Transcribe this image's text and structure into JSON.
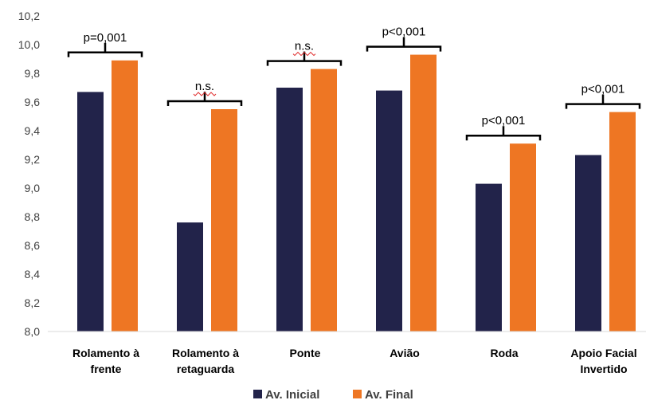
{
  "chart_data": {
    "type": "bar",
    "categories": [
      [
        "Rolamento à",
        "frente"
      ],
      [
        "Rolamento à",
        "retaguarda"
      ],
      [
        "Ponte"
      ],
      [
        "Avião"
      ],
      [
        "Roda"
      ],
      [
        "Apoio Facial",
        "Invertido"
      ]
    ],
    "series": [
      {
        "name": "Av. Inicial",
        "color": "#22234a",
        "values": [
          9.67,
          8.76,
          9.7,
          9.68,
          9.03,
          9.23
        ]
      },
      {
        "name": "Av. Final",
        "color": "#ee7623",
        "values": [
          9.89,
          9.55,
          9.83,
          9.93,
          9.31,
          9.53
        ]
      }
    ],
    "annotations": [
      "p=0,001",
      "n.s.",
      "n.s.",
      "p<0,001",
      "p<0,001",
      "p<0,001"
    ],
    "ylim": [
      8.0,
      10.2
    ],
    "yticks": [
      "8,0",
      "8,2",
      "8,4",
      "8,6",
      "8,8",
      "9,0",
      "9,2",
      "9,4",
      "9,6",
      "9,8",
      "10,0",
      "10,2"
    ],
    "grid": false,
    "legend_position": "bottom"
  }
}
